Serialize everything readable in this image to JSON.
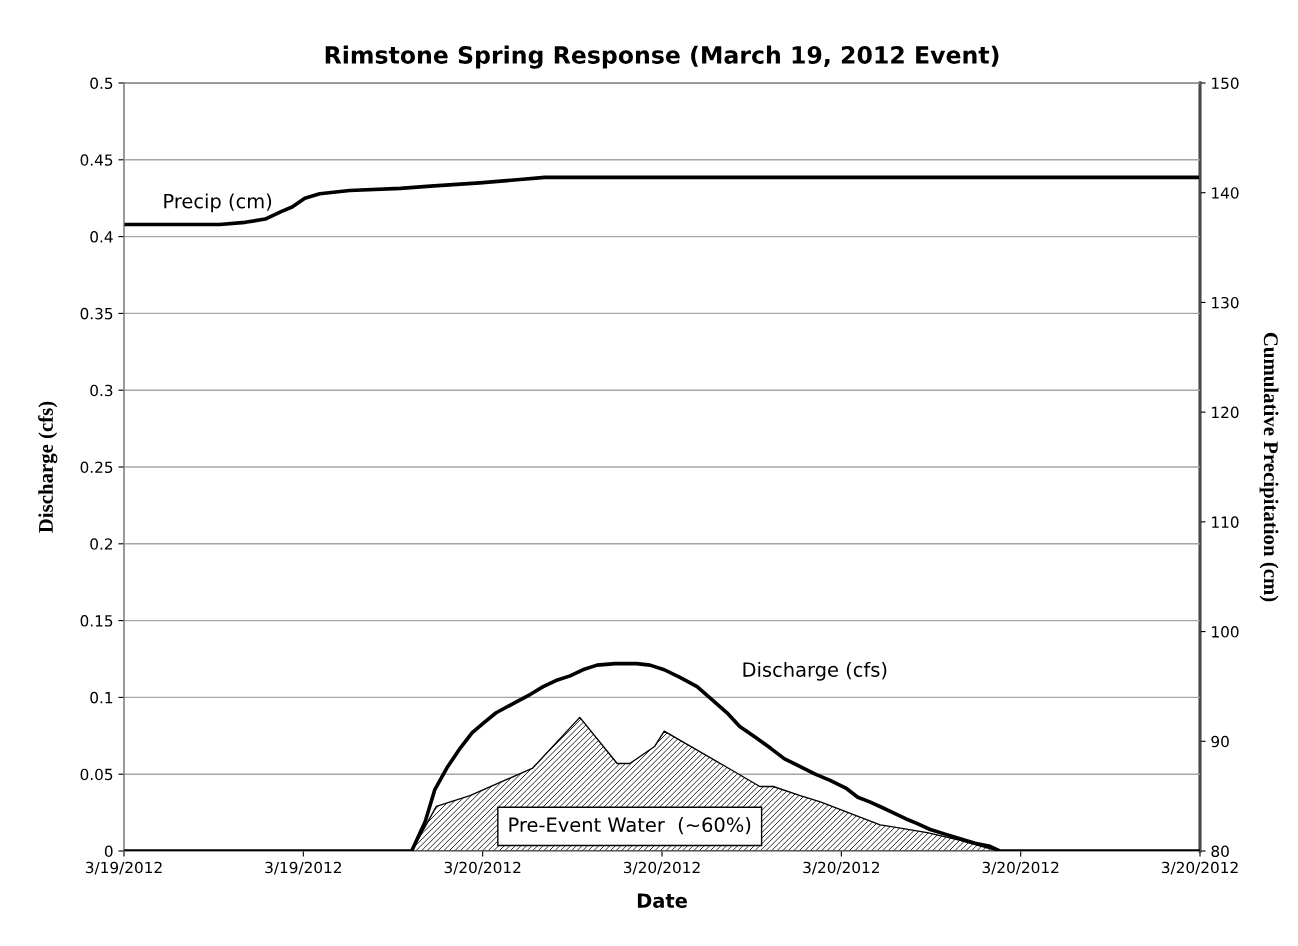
{
  "chart_data": {
    "type": "line",
    "title": "Rimstone Spring Response (March 19, 2012 Event)",
    "xlabel": "Date",
    "ylabel": "Discharge (cfs)",
    "y2label": "Cumulative Precipitation (cm)",
    "xlim": [
      "2012-03-19T16:00",
      "2012-03-20T16:00"
    ],
    "xticks": [
      {
        "value": "2012-03-19T16:00",
        "label": "3/19/2012"
      },
      {
        "value": "2012-03-19T20:00",
        "label": "3/19/2012"
      },
      {
        "value": "2012-03-20T00:00",
        "label": "3/20/2012"
      },
      {
        "value": "2012-03-20T04:00",
        "label": "3/20/2012"
      },
      {
        "value": "2012-03-20T08:00",
        "label": "3/20/2012"
      },
      {
        "value": "2012-03-20T12:00",
        "label": "3/20/2012"
      },
      {
        "value": "2012-03-20T16:00",
        "label": "3/20/2012"
      }
    ],
    "ylim": [
      0,
      0.5
    ],
    "yticks": [
      0,
      0.05,
      0.1,
      0.15,
      0.2,
      0.25,
      0.3,
      0.35,
      0.4,
      0.45,
      0.5
    ],
    "y2lim": [
      80,
      150
    ],
    "y2ticks": [
      80,
      90,
      100,
      110,
      120,
      130,
      140,
      150
    ],
    "grid": "y",
    "legend": false,
    "marker": "none",
    "line_style": "solid",
    "series": [
      {
        "type": "area",
        "color": "#000000",
        "x": [
          "2012-03-19T22:25",
          "2012-03-19T22:58",
          "2012-03-19T23:43",
          "2012-03-20T01:07",
          "2012-03-20T02:10",
          "2012-03-20T03:00",
          "2012-03-20T03:17",
          "2012-03-20T03:50",
          "2012-03-20T04:03",
          "2012-03-20T05:25",
          "2012-03-20T06:11",
          "2012-03-20T06:29",
          "2012-03-20T07:05",
          "2012-03-20T07:32",
          "2012-03-20T08:52",
          "2012-03-20T09:05",
          "2012-03-20T09:55",
          "2012-03-20T10:39",
          "2012-03-20T11:23",
          "2012-03-20T11:28"
        ],
        "values": [
          0,
          0.029,
          0.036,
          0.054,
          0.087,
          0.057,
          0.057,
          0.068,
          0.078,
          0.055,
          0.042,
          0.042,
          0.036,
          0.032,
          0.017,
          0.016,
          0.012,
          0.007,
          0.001,
          0
        ]
      },
      {
        "color": "#000000",
        "x": [
          "2012-03-19T16:00",
          "2012-03-19T22:25",
          "2012-03-19T22:43",
          "2012-03-19T22:56",
          "2012-03-19T23:12",
          "2012-03-19T23:30",
          "2012-03-19T23:46",
          "2012-03-20T00:03",
          "2012-03-20T00:18",
          "2012-03-20T00:37",
          "2012-03-20T01:04",
          "2012-03-20T01:21",
          "2012-03-20T01:38",
          "2012-03-20T01:57",
          "2012-03-20T02:14",
          "2012-03-20T02:33",
          "2012-03-20T02:57",
          "2012-03-20T03:26",
          "2012-03-20T03:44",
          "2012-03-20T04:03",
          "2012-03-20T04:24",
          "2012-03-20T04:47",
          "2012-03-20T05:08",
          "2012-03-20T05:27",
          "2012-03-20T05:44",
          "2012-03-20T06:05",
          "2012-03-20T06:25",
          "2012-03-20T06:44",
          "2012-03-20T07:05",
          "2012-03-20T07:25",
          "2012-03-20T07:45",
          "2012-03-20T08:06",
          "2012-03-20T08:22",
          "2012-03-20T08:38",
          "2012-03-20T08:56",
          "2012-03-20T09:09",
          "2012-03-20T09:26",
          "2012-03-20T09:41",
          "2012-03-20T09:59",
          "2012-03-20T10:19",
          "2012-03-20T10:39",
          "2012-03-20T10:59",
          "2012-03-20T11:19",
          "2012-03-20T11:32",
          "2012-03-20T16:00"
        ],
        "values": [
          0,
          0,
          0.019,
          0.04,
          0.054,
          0.067,
          0.077,
          0.084,
          0.09,
          0.095,
          0.102,
          0.107,
          0.111,
          0.114,
          0.118,
          0.121,
          0.122,
          0.122,
          0.121,
          0.118,
          0.113,
          0.107,
          0.098,
          0.09,
          0.081,
          0.074,
          0.067,
          0.06,
          0.055,
          0.05,
          0.046,
          0.041,
          0.035,
          0.032,
          0.028,
          0.025,
          0.021,
          0.018,
          0.014,
          0.011,
          0.008,
          0.005,
          0.003,
          0,
          0
        ]
      },
      {
        "axis": "y2",
        "color": "#000000",
        "x": [
          "2012-03-19T16:00",
          "2012-03-19T18:08",
          "2012-03-19T18:42",
          "2012-03-19T19:09",
          "2012-03-19T19:31",
          "2012-03-19T19:45",
          "2012-03-19T20:02",
          "2012-03-19T20:22",
          "2012-03-19T21:02",
          "2012-03-19T22:10",
          "2012-03-19T22:50",
          "2012-03-19T23:56",
          "2012-03-20T00:50",
          "2012-03-20T01:23",
          "2012-03-20T16:00"
        ],
        "values": [
          137.1,
          137.1,
          137.3,
          137.6,
          138.3,
          138.7,
          139.5,
          139.9,
          140.2,
          140.4,
          140.6,
          140.9,
          141.2,
          141.4,
          141.4
        ]
      }
    ],
    "annotations": [
      "Precip (cm)",
      "Discharge (cfs)",
      "Pre-Event Water  (~60%)"
    ]
  }
}
